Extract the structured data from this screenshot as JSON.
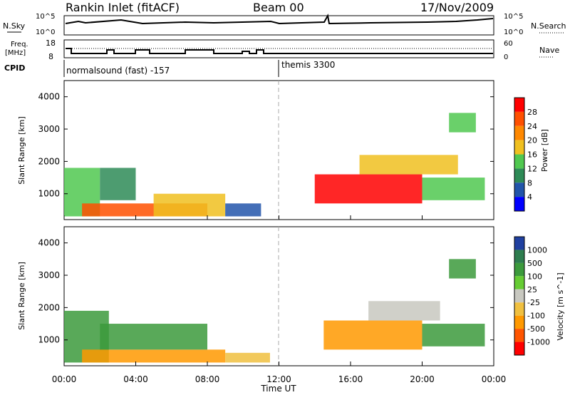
{
  "header": {
    "radar": "Rankin Inlet (fitACF)",
    "beam": "Beam 00",
    "date": "17/Nov/2009"
  },
  "top_panel": {
    "nsky_label": "N.Sky",
    "nsky_ticks": [
      "10^5",
      "10^0"
    ],
    "nsearch_label": "N.Search",
    "nsearch_ticks": [
      "10^5",
      "10^0"
    ],
    "freq_label_line1": "Freq.",
    "freq_label_line2": "[MHz]",
    "freq_ticks": [
      "18",
      "8"
    ],
    "nave_label": "Nave",
    "nave_ticks": [
      "60",
      "0"
    ],
    "cpid_label": "CPID",
    "cpid_segments": [
      {
        "label": "normalsound (fast) -157",
        "start_hour": 0
      },
      {
        "label": "themis 3300",
        "start_hour": 12
      }
    ]
  },
  "time_axis": {
    "label": "Time UT",
    "ticks": [
      "00:00",
      "04:00",
      "08:00",
      "12:00",
      "16:00",
      "20:00",
      "00:00"
    ],
    "tick_hours": [
      0,
      4,
      8,
      12,
      16,
      20,
      24
    ],
    "range_hours": [
      0,
      24
    ]
  },
  "colors": {
    "power": [
      "#0000ff",
      "#2255aa",
      "#2e8b57",
      "#50c850",
      "#f0c020",
      "#ff8800",
      "#ff5000",
      "#ff0000"
    ],
    "velocity": [
      "#2040a0",
      "#2e7d4f",
      "#3c9a3c",
      "#66cc33",
      "#c8c8c0",
      "#f0c040",
      "#ff9900",
      "#ff5500",
      "#ff0000"
    ]
  },
  "chart_data": [
    {
      "type": "heatmap",
      "title": "Power",
      "xlabel": "Time UT",
      "ylabel": "Slant Range [km]",
      "yticks": [
        "1000",
        "2000",
        "3000",
        "4000"
      ],
      "ylim": [
        200,
        4500
      ],
      "colorbar": {
        "label": "Power [dB]",
        "ticks": [
          "4",
          "8",
          "12",
          "16",
          "20",
          "24",
          "28"
        ],
        "range": [
          0,
          32
        ]
      },
      "regions": [
        {
          "x": [
            0.0,
            2.0
          ],
          "y": [
            300,
            1800
          ],
          "value": 14
        },
        {
          "x": [
            1.0,
            8.0
          ],
          "y": [
            300,
            700
          ],
          "value": 24
        },
        {
          "x": [
            2.0,
            4.0
          ],
          "y": [
            800,
            1800
          ],
          "value": 8
        },
        {
          "x": [
            5.0,
            9.0
          ],
          "y": [
            300,
            1000
          ],
          "value": 16
        },
        {
          "x": [
            9.0,
            11.0
          ],
          "y": [
            300,
            700
          ],
          "value": 6
        },
        {
          "x": [
            14.0,
            20.0
          ],
          "y": [
            700,
            1600
          ],
          "value": 30
        },
        {
          "x": [
            16.5,
            22.0
          ],
          "y": [
            1600,
            2200
          ],
          "value": 18
        },
        {
          "x": [
            20.0,
            23.5
          ],
          "y": [
            800,
            1500
          ],
          "value": 12
        },
        {
          "x": [
            21.5,
            23.0
          ],
          "y": [
            2900,
            3500
          ],
          "value": 14
        }
      ]
    },
    {
      "type": "heatmap",
      "title": "Velocity",
      "xlabel": "Time UT",
      "ylabel": "Slant Range [km]",
      "yticks": [
        "1000",
        "2000",
        "3000",
        "4000"
      ],
      "ylim": [
        200,
        4500
      ],
      "colorbar": {
        "label": "Velocity [m s^-1]",
        "ticks": [
          "1000",
          "500",
          "100",
          "25",
          "-25",
          "-100",
          "-500",
          "-1000"
        ]
      },
      "regions": [
        {
          "x": [
            0.0,
            2.5
          ],
          "y": [
            300,
            1900
          ],
          "value": 200
        },
        {
          "x": [
            1.0,
            9.0
          ],
          "y": [
            300,
            700
          ],
          "value": -150
        },
        {
          "x": [
            2.0,
            8.0
          ],
          "y": [
            700,
            1500
          ],
          "value": 100
        },
        {
          "x": [
            9.0,
            11.5
          ],
          "y": [
            300,
            600
          ],
          "value": -50
        },
        {
          "x": [
            14.5,
            20.0
          ],
          "y": [
            700,
            1600
          ],
          "value": -300
        },
        {
          "x": [
            17.0,
            21.0
          ],
          "y": [
            1600,
            2200
          ],
          "value": 0
        },
        {
          "x": [
            20.0,
            23.5
          ],
          "y": [
            800,
            1500
          ],
          "value": 150
        },
        {
          "x": [
            21.5,
            23.0
          ],
          "y": [
            2900,
            3500
          ],
          "value": 300
        }
      ]
    }
  ]
}
